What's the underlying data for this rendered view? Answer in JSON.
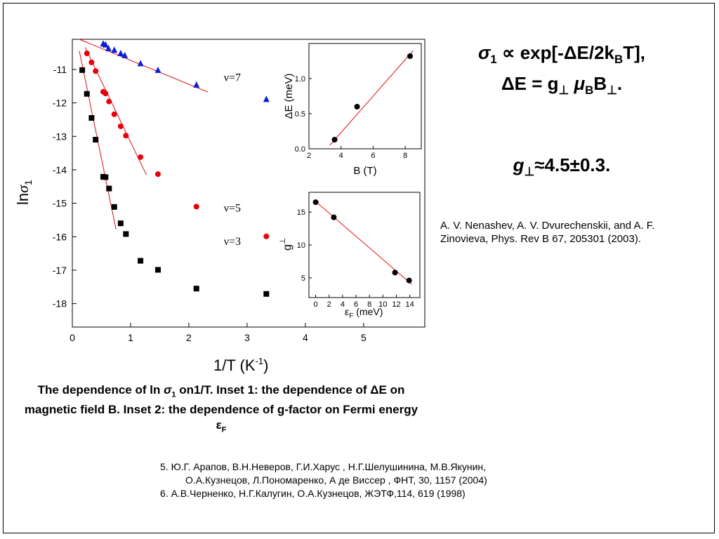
{
  "main_formula": {
    "line1_sigma": "σ",
    "line1_sub": "1",
    "line1_rest_a": " ∝ exp[-ΔE/2k",
    "line1_sub_b": "B",
    "line1_rest_b": "T],",
    "line2_a": "ΔE = g",
    "line2_perp": "⊥",
    "line2_mu": "μ",
    "line2_sub_b": "B",
    "line2_b": "B",
    "line2_perp2": "⊥",
    "line2_end": "."
  },
  "g_result": {
    "g": "g",
    "perp": "⊥",
    "value": "≈4.5±0.3."
  },
  "reference_main": "A. V. Nenashev, A. V. Dvurechenskii, and A. F. Zinovieva, Phys. Rev B 67, 205301 (2003).",
  "caption": {
    "part1": "The dependence of ln ",
    "sigma": "σ",
    "sub1": "1",
    "part2": " on1/T. Inset 1: the dependence of ΔE on magnetic field  B. Inset 2: the dependence of g-factor on Fermi energy  ",
    "eps": "ε",
    "subF": "F"
  },
  "references": [
    "5. Ю.Г. Арапов, В.Н.Неверов, Г.И.Харус ,  Н.Г.Шелушинина, М.В.Якунин,",
    "О.А.Кузнецов, Л.Пономаренко,  А де Виссер , ФНТ, 30, 1157 (2004)",
    "6. А.В.Черненко, Н.Г.Калугин, О.А.Кузнецов, ЖЭТФ,114, 619 (1998)"
  ],
  "colors": {
    "red": "#e8000b",
    "blue": "#0b1fd6",
    "black": "#000000",
    "fit": "#e01010"
  },
  "chart_data": [
    {
      "type": "scatter",
      "xlabel": "1/T (K",
      "xlabel_sup": "-1",
      "xlabel_end": ")",
      "ylabel": "ln",
      "ylabel_sigma": "σ",
      "ylabel_sub": "1",
      "xlim": [
        0,
        6.05
      ],
      "ylim": [
        -18.7,
        -10.1
      ],
      "xticks": [
        0,
        1,
        2,
        3,
        4,
        5
      ],
      "yticks": [
        -11,
        -12,
        -13,
        -14,
        -15,
        -16,
        -17,
        -18
      ],
      "annotations": [
        {
          "text": "ν=7",
          "x": 2.6,
          "y": -11.35
        },
        {
          "text": "ν=5",
          "x": 2.6,
          "y": -15.25
        },
        {
          "text": "ν=3",
          "x": 2.6,
          "y": -16.25
        }
      ],
      "series": [
        {
          "name": "ν=7",
          "marker": "triangle",
          "color": "#0b1fd6",
          "x": [
            0.53,
            0.57,
            0.62,
            0.72,
            0.83,
            0.9,
            1.17,
            1.47,
            2.13,
            3.33
          ],
          "y": [
            -10.23,
            -10.26,
            -10.37,
            -10.42,
            -10.52,
            -10.58,
            -10.82,
            -11.02,
            -11.46,
            -11.89
          ],
          "fit": {
            "x": [
              0.12,
              2.33
            ],
            "y": [
              -10.1,
              -11.68
            ]
          }
        },
        {
          "name": "ν=5",
          "marker": "circle",
          "color": "#e8000b",
          "x": [
            0.25,
            0.33,
            0.4,
            0.53,
            0.57,
            0.63,
            0.72,
            0.83,
            0.92,
            1.17,
            1.47,
            2.13,
            3.33
          ],
          "y": [
            -10.52,
            -10.79,
            -11.05,
            -11.67,
            -11.72,
            -11.96,
            -12.34,
            -12.7,
            -12.98,
            -13.62,
            -14.13,
            -15.1,
            -15.99
          ],
          "fit": {
            "x": [
              0.22,
              1.27
            ],
            "y": [
              -10.34,
              -14.15
            ]
          }
        },
        {
          "name": "ν=3",
          "marker": "square",
          "color": "#000000",
          "x": [
            0.17,
            0.25,
            0.33,
            0.4,
            0.53,
            0.57,
            0.63,
            0.72,
            0.83,
            0.92,
            1.17,
            1.47,
            2.13,
            3.33
          ],
          "y": [
            -11.02,
            -11.73,
            -12.45,
            -13.1,
            -14.21,
            -14.22,
            -14.56,
            -15.11,
            -15.6,
            -15.92,
            -16.72,
            -16.99,
            -17.55,
            -17.71
          ],
          "fit": {
            "x": [
              0.12,
              0.75
            ],
            "y": [
              -10.45,
              -15.78
            ]
          }
        }
      ]
    },
    {
      "type": "scatter",
      "xlabel": "B (T)",
      "ylabel": "ΔE (meV)",
      "xlim": [
        2,
        9
      ],
      "ylim": [
        0,
        1.5
      ],
      "xticks": [
        2,
        4,
        6,
        8
      ],
      "yticks": [
        0.0,
        0.5,
        1.0
      ],
      "ytick_labels": [
        "0.0",
        "0.5",
        "1.0"
      ],
      "series": [
        {
          "marker": "circle",
          "color": "#000000",
          "x": [
            3.6,
            5.0,
            8.3
          ],
          "y": [
            0.13,
            0.6,
            1.32
          ],
          "fit": {
            "x": [
              3.3,
              8.5
            ],
            "y": [
              0.05,
              1.4
            ]
          }
        }
      ]
    },
    {
      "type": "scatter",
      "xlabel": "ε",
      "xlabel_sub": "F",
      "xlabel_end": " (meV)",
      "ylabel": "g",
      "ylabel_sub": "⊥",
      "xlim": [
        -1,
        15.5
      ],
      "ylim": [
        2,
        18
      ],
      "xticks": [
        0,
        2,
        4,
        6,
        8,
        10,
        12,
        14
      ],
      "yticks": [
        5,
        10,
        15
      ],
      "series": [
        {
          "marker": "circle",
          "color": "#000000",
          "x": [
            0,
            2.7,
            11.8,
            13.9
          ],
          "y": [
            16.5,
            14.2,
            5.8,
            4.6
          ],
          "fit": {
            "x": [
              0,
              14.3
            ],
            "y": [
              16.6,
              4.0
            ]
          }
        }
      ]
    }
  ]
}
